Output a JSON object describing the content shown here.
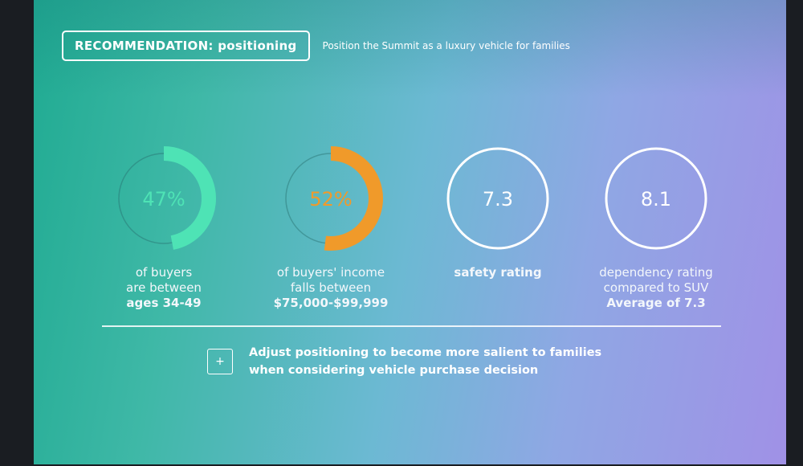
{
  "header": {
    "label": "RECOMMENDATION: positioning",
    "subtitle": "Position the Summit as a luxury vehicle for families"
  },
  "stats": [
    {
      "value": "47%",
      "percent": 47,
      "color": "#4ee3b5",
      "lines": [
        "of buyers",
        "are between",
        "ages 34-49"
      ],
      "bold_lines": [
        2
      ]
    },
    {
      "value": "52%",
      "percent": 52,
      "color": "#f09a2a",
      "lines": [
        "of buyers' income",
        "falls between",
        "$75,000-$99,999"
      ],
      "bold_lines": [
        2
      ]
    },
    {
      "value": "7.3",
      "lines": [
        "safety rating"
      ],
      "bold_lines": [
        0
      ]
    },
    {
      "value": "8.1",
      "lines": [
        "dependency rating",
        "compared to SUV",
        "Average of 7.3"
      ],
      "bold_lines": [
        2
      ]
    }
  ],
  "action": {
    "icon": "plus-icon",
    "icon_glyph": "+",
    "line1": "Adjust positioning to become more salient to families",
    "line2": "when considering vehicle purchase decision"
  }
}
